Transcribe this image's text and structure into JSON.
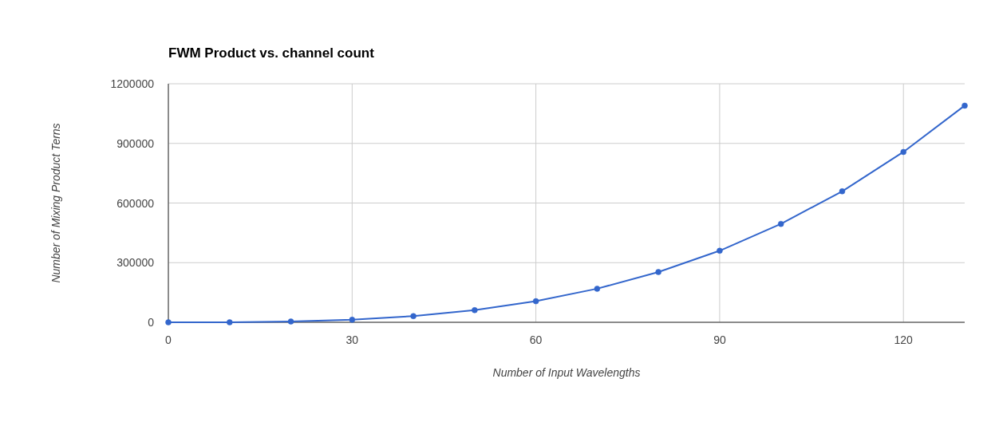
{
  "chart_data": {
    "type": "line",
    "title": "FWM Product vs. channel count",
    "xlabel": "Number of Input Wavelengths",
    "ylabel": "Number of Mixing Product Terns",
    "x": [
      0,
      10,
      20,
      30,
      40,
      50,
      60,
      70,
      80,
      90,
      100,
      110,
      120,
      130
    ],
    "series": [
      {
        "color": "#3366cc",
        "values": [
          0,
          0,
          4000,
          13000,
          31000,
          61000,
          106000,
          169000,
          253000,
          360000,
          495000,
          659000,
          857000,
          1090000
        ]
      }
    ],
    "xlim": [
      0,
      130
    ],
    "xticks": [
      0,
      30,
      60,
      90,
      120
    ],
    "ylim": [
      0,
      1200000
    ],
    "yticks": [
      0,
      300000,
      600000,
      900000,
      1200000
    ],
    "grid": true,
    "marker": "circle",
    "line_style": "solid"
  }
}
